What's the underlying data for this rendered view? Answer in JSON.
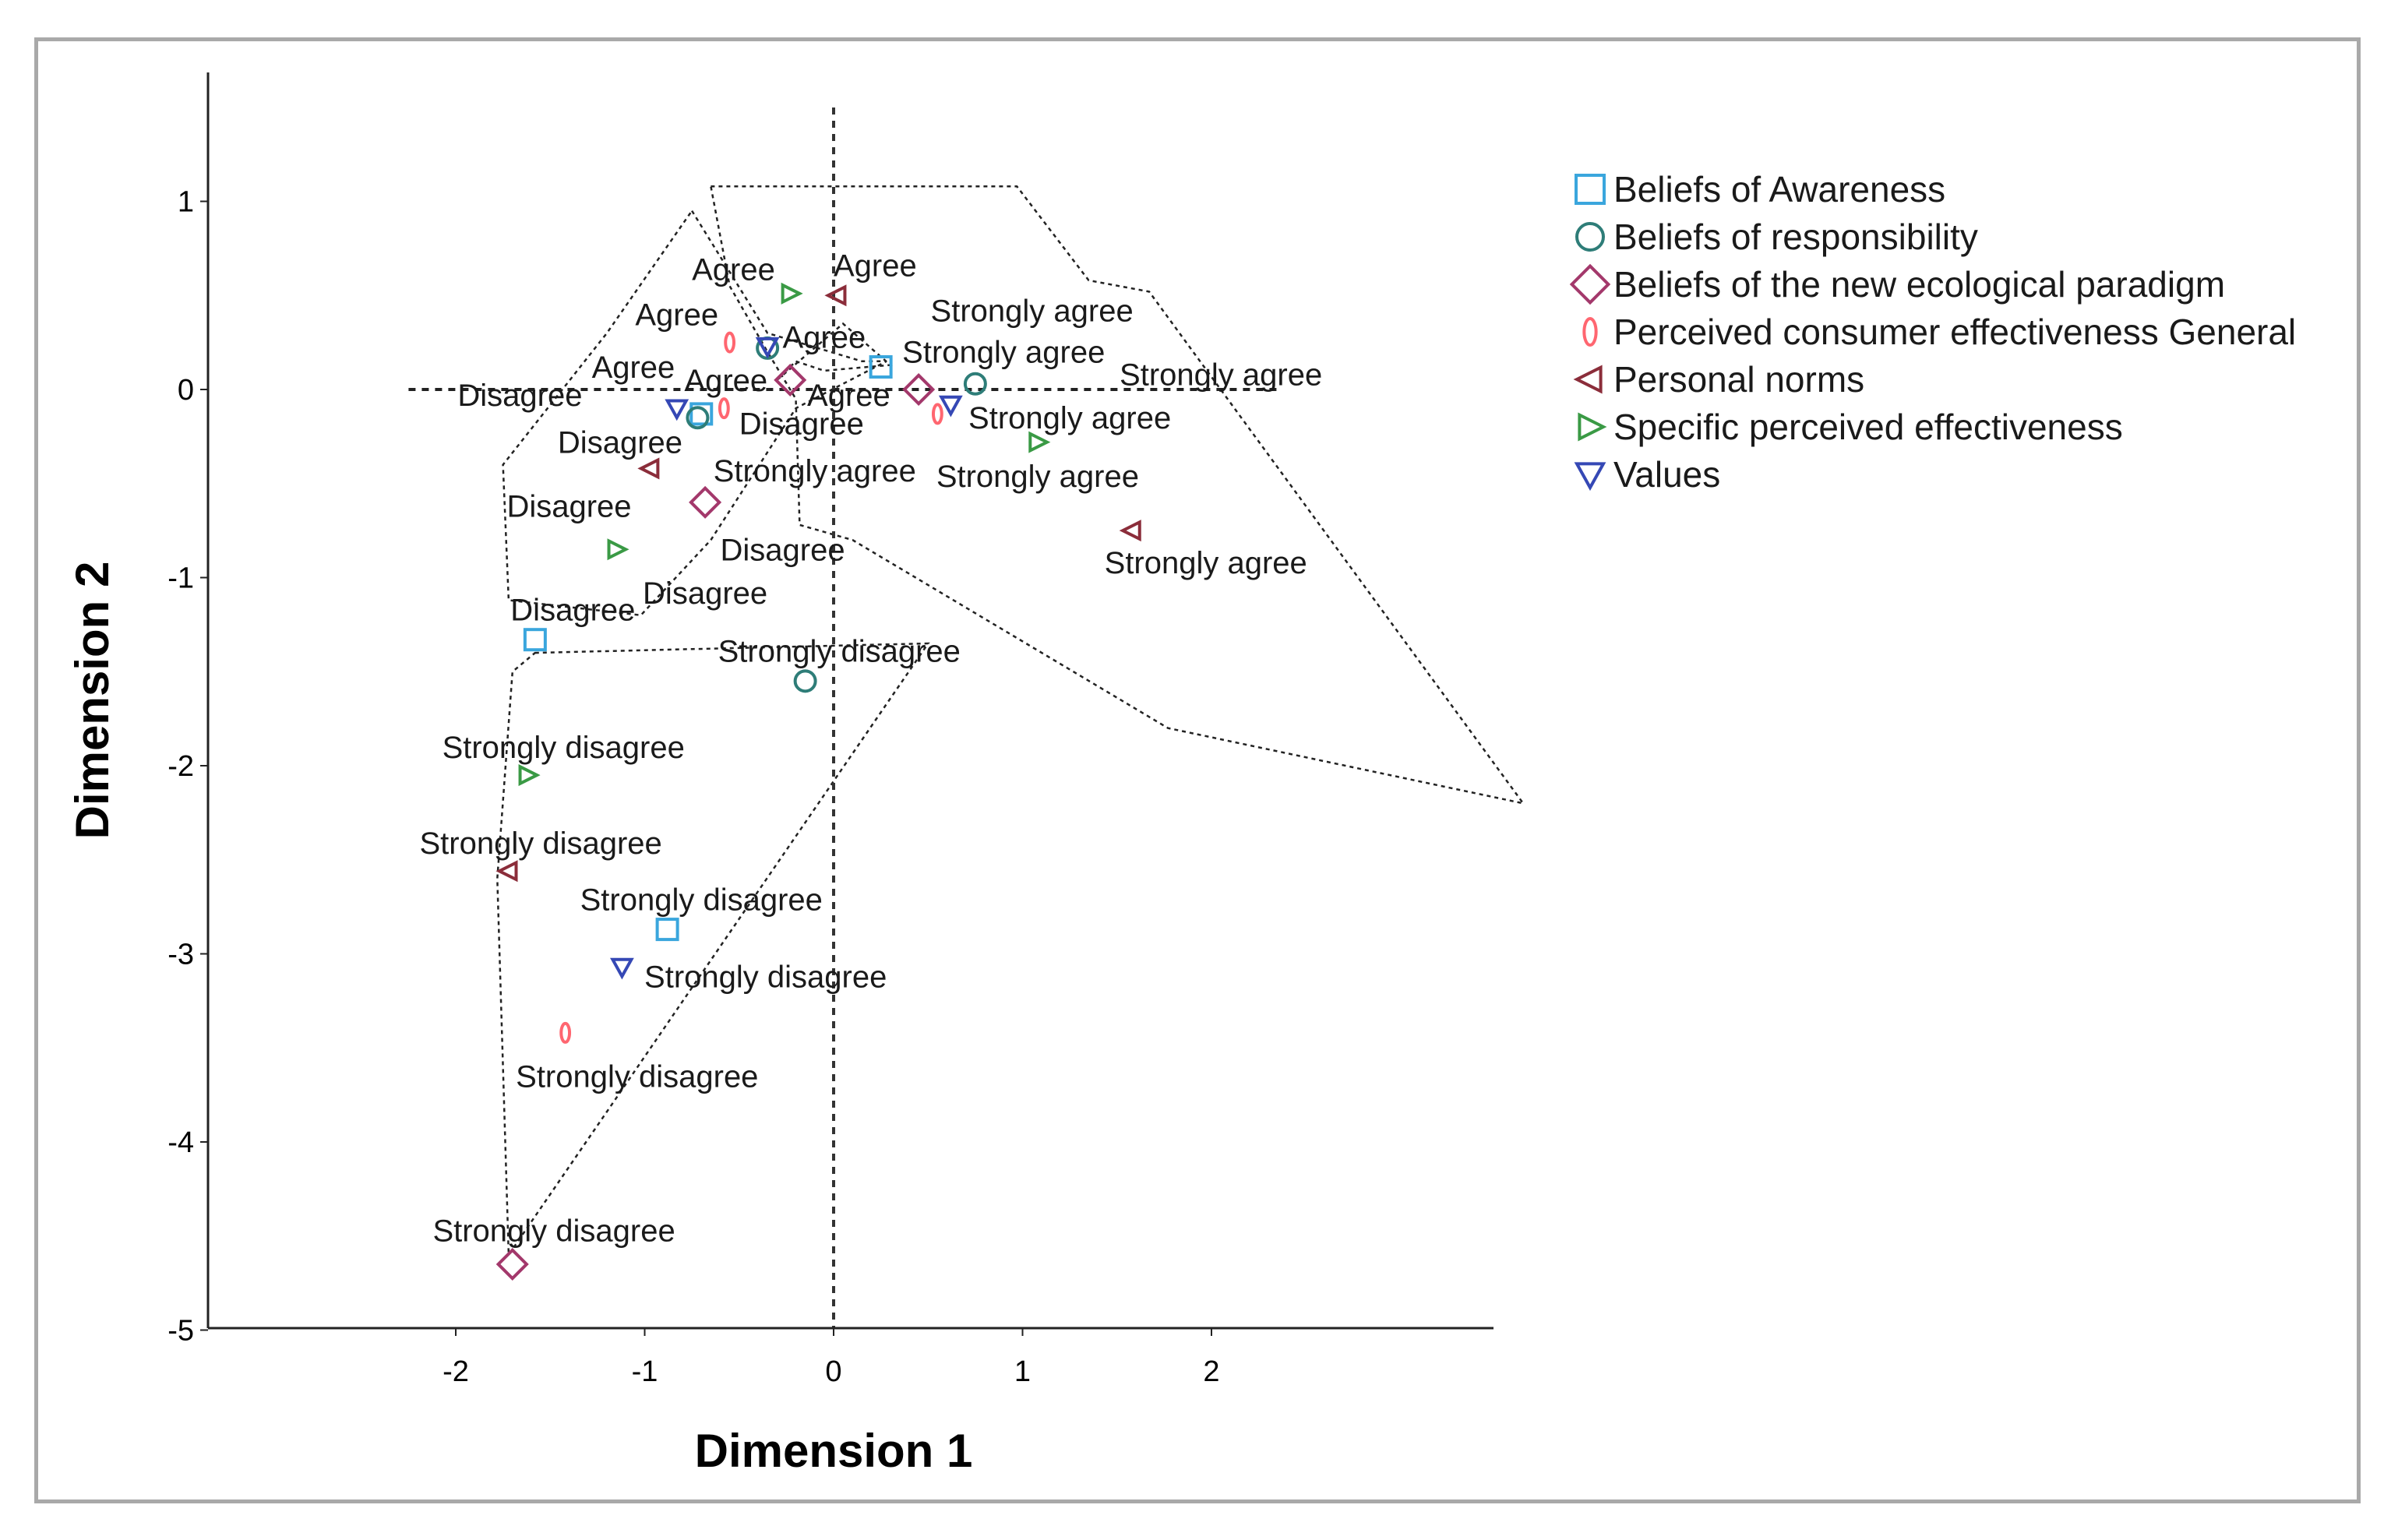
{
  "chart_data": {
    "type": "scatter",
    "title": "",
    "xlabel": "Dimension 1",
    "ylabel": "Dimension 2",
    "xlim": [
      -3.4,
      3.3
    ],
    "ylim": [
      -5.0,
      1.7
    ],
    "xticks": [
      -2,
      -1,
      0,
      1,
      2
    ],
    "yticks": [
      1,
      0,
      -1,
      -2,
      -3,
      -4,
      -5
    ],
    "legend_position": "top-right",
    "series": [
      {
        "name": "Beliefs of Awareness",
        "marker": "square",
        "color": "#3aa6dd",
        "points": [
          {
            "x": 0.25,
            "y": 0.12,
            "label": "Strongly agree"
          },
          {
            "x": -0.7,
            "y": -0.13,
            "label": "Agree"
          },
          {
            "x": -1.58,
            "y": -1.33,
            "label": "Disagree"
          },
          {
            "x": -0.88,
            "y": -2.87,
            "label": "Strongly disagree"
          }
        ]
      },
      {
        "name": "Beliefs of responsibility",
        "marker": "circle",
        "color": "#2e7d78",
        "points": [
          {
            "x": 0.75,
            "y": 0.03,
            "label": "Strongly agree"
          },
          {
            "x": -0.35,
            "y": 0.22,
            "label": "Agree"
          },
          {
            "x": -0.72,
            "y": -0.15,
            "label": "Disagree"
          },
          {
            "x": -0.15,
            "y": -1.55,
            "label": "Strongly disagree"
          }
        ]
      },
      {
        "name": "Beliefs of the new ecological paradigm",
        "marker": "diamond",
        "color": "#a3386b",
        "points": [
          {
            "x": 0.45,
            "y": 0.0,
            "label": "Strongly agree"
          },
          {
            "x": -0.23,
            "y": 0.05,
            "label": "Agree"
          },
          {
            "x": -0.68,
            "y": -0.6,
            "label": "Disagree"
          },
          {
            "x": -1.7,
            "y": -4.65,
            "label": "Strongly disagree"
          }
        ]
      },
      {
        "name": "Perceived consumer effectiveness General",
        "marker": "ellipse",
        "color": "#ff6670",
        "points": [
          {
            "x": 0.55,
            "y": -0.13,
            "label": "Strongly agree"
          },
          {
            "x": -0.55,
            "y": 0.25,
            "label": "Agree"
          },
          {
            "x": -0.58,
            "y": -0.1,
            "label": "Disagree"
          },
          {
            "x": -1.42,
            "y": -3.42,
            "label": "Strongly disagree"
          }
        ]
      },
      {
        "name": "Personal norms",
        "marker": "triangle-left",
        "color": "#8b2d3a",
        "points": [
          {
            "x": 1.58,
            "y": -0.75,
            "label": "Strongly agree"
          },
          {
            "x": 0.02,
            "y": 0.5,
            "label": "Agree"
          },
          {
            "x": -0.97,
            "y": -0.42,
            "label": "Disagree"
          },
          {
            "x": -1.72,
            "y": -2.56,
            "label": "Strongly disagree"
          }
        ]
      },
      {
        "name": "Specific perceived effectiveness",
        "marker": "triangle-right",
        "color": "#3a9a45",
        "points": [
          {
            "x": 1.08,
            "y": -0.28,
            "label": "Strongly agree"
          },
          {
            "x": -0.23,
            "y": 0.51,
            "label": "Agree"
          },
          {
            "x": -1.15,
            "y": -0.85,
            "label": "Disagree"
          },
          {
            "x": -1.62,
            "y": -2.05,
            "label": "Strongly disagree"
          }
        ]
      },
      {
        "name": "Values",
        "marker": "triangle-down",
        "color": "#3548b5",
        "points": [
          {
            "x": 0.62,
            "y": -0.08,
            "label": "Strongly agree"
          },
          {
            "x": -0.35,
            "y": 0.23,
            "label": "Agree"
          },
          {
            "x": -0.83,
            "y": -0.1,
            "label": "Disagree"
          },
          {
            "x": -1.12,
            "y": -3.07,
            "label": "Strongly disagree"
          }
        ]
      }
    ],
    "text_labels": [
      {
        "text": "Agree",
        "x": -0.53,
        "y": 0.64
      },
      {
        "text": "Agree",
        "x": 0.22,
        "y": 0.66
      },
      {
        "text": "Agree",
        "x": -0.83,
        "y": 0.4
      },
      {
        "text": "Agree",
        "x": -0.05,
        "y": 0.28
      },
      {
        "text": "Agree",
        "x": -1.06,
        "y": 0.12
      },
      {
        "text": "Agree",
        "x": -0.57,
        "y": 0.05
      },
      {
        "text": "Agree",
        "x": 0.08,
        "y": -0.03
      },
      {
        "text": "Strongly agree",
        "x": 1.05,
        "y": 0.42
      },
      {
        "text": "Strongly agree",
        "x": 0.9,
        "y": 0.2
      },
      {
        "text": "Strongly agree",
        "x": 2.05,
        "y": 0.08
      },
      {
        "text": "Strongly agree",
        "x": 1.25,
        "y": -0.15
      },
      {
        "text": "Strongly agree",
        "x": -0.1,
        "y": -0.43
      },
      {
        "text": "Strongly agree",
        "x": 1.08,
        "y": -0.46
      },
      {
        "text": "Strongly agree",
        "x": 1.97,
        "y": -0.92
      },
      {
        "text": "Disagree",
        "x": -1.66,
        "y": -0.03
      },
      {
        "text": "Disagree",
        "x": -0.17,
        "y": -0.18
      },
      {
        "text": "Disagree",
        "x": -1.13,
        "y": -0.28
      },
      {
        "text": "Disagree",
        "x": -1.4,
        "y": -0.62
      },
      {
        "text": "Disagree",
        "x": -0.27,
        "y": -0.85
      },
      {
        "text": "Disagree",
        "x": -0.68,
        "y": -1.08
      },
      {
        "text": "Disagree",
        "x": -1.38,
        "y": -1.17
      },
      {
        "text": "Strongly disagree",
        "x": 0.03,
        "y": -1.39
      },
      {
        "text": "Strongly disagree",
        "x": -1.43,
        "y": -1.9
      },
      {
        "text": "Strongly disagree",
        "x": -1.55,
        "y": -2.41
      },
      {
        "text": "Strongly disagree",
        "x": -0.7,
        "y": -2.71
      },
      {
        "text": "Strongly disagree",
        "x": -0.36,
        "y": -3.12
      },
      {
        "text": "Strongly disagree",
        "x": -1.04,
        "y": -3.65
      },
      {
        "text": "Strongly disagree",
        "x": -1.48,
        "y": -4.47
      }
    ],
    "hulls": [
      {
        "category": "Agree",
        "points": [
          [
            -0.75,
            0.95
          ],
          [
            -0.35,
            0.3
          ],
          [
            0.15,
            0.15
          ],
          [
            0.28,
            0.15
          ],
          [
            -0.2,
            -0.1
          ],
          [
            -0.65,
            -0.8
          ],
          [
            -1.02,
            -1.2
          ],
          [
            -1.72,
            -1.12
          ],
          [
            -1.75,
            -0.4
          ],
          [
            -1.2,
            0.3
          ]
        ]
      },
      {
        "category": "Strongly agree",
        "points": [
          [
            -0.65,
            1.08
          ],
          [
            0.97,
            1.08
          ],
          [
            1.35,
            0.58
          ],
          [
            1.67,
            0.52
          ],
          [
            3.65,
            -2.2
          ],
          [
            1.77,
            -1.8
          ],
          [
            0.1,
            -0.8
          ],
          [
            -0.18,
            -0.72
          ],
          [
            -0.2,
            -0.05
          ],
          [
            -0.35,
            0.2
          ],
          [
            -0.55,
            0.55
          ]
        ]
      },
      {
        "category": "Disagree",
        "points": [
          [
            -2.25,
            0.0
          ],
          [
            2.35,
            0.0
          ]
        ]
      },
      {
        "category": "Disagree-center",
        "points": [
          [
            -0.2,
            0.15
          ],
          [
            -0.05,
            0.1
          ],
          [
            0.3,
            0.13
          ],
          [
            0.05,
            0.35
          ],
          [
            -0.3,
            0.05
          ]
        ]
      },
      {
        "category": "Strongly disagree",
        "points": [
          [
            -1.58,
            -1.4
          ],
          [
            0.5,
            -1.35
          ],
          [
            -1.72,
            -4.6
          ],
          [
            -1.78,
            -2.6
          ],
          [
            -1.7,
            -1.5
          ]
        ]
      }
    ],
    "reference_lines": {
      "x": 0,
      "y": 0
    }
  }
}
